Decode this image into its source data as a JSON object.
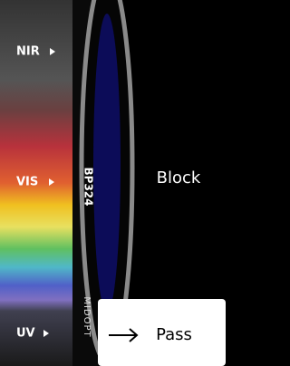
{
  "labels": {
    "nir": "NIR",
    "vis": "VIS",
    "uv": "UV"
  },
  "filter": {
    "model": "BP324",
    "brand": "MIDOPT"
  },
  "regions": {
    "block": "Block",
    "pass": "Pass"
  }
}
